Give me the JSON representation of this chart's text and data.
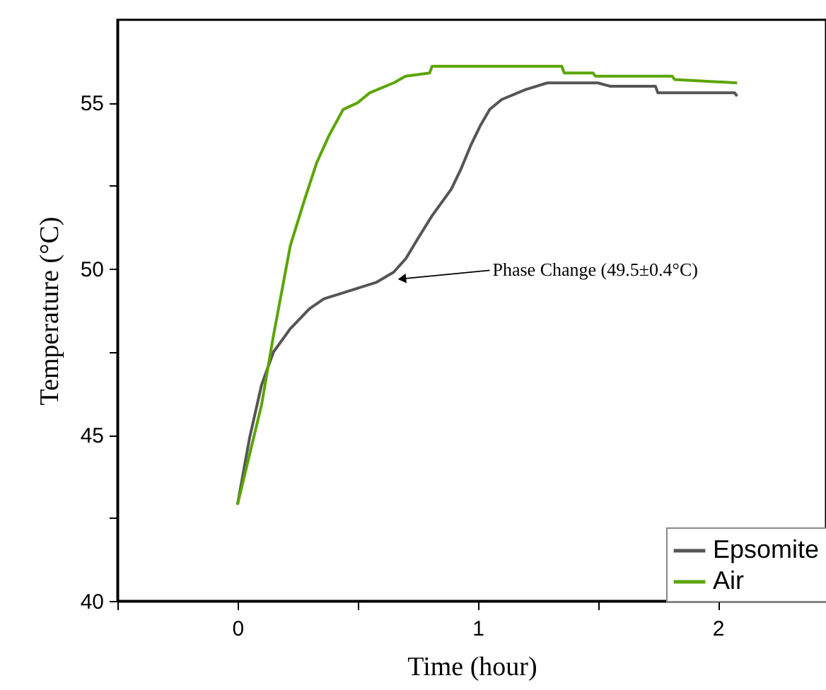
{
  "chart_data": {
    "type": "line",
    "xlabel": "Time (hour)",
    "ylabel": "Temperature (°C)",
    "xlim": [
      -0.5,
      2.45
    ],
    "xticks": [
      {
        "value": -0.5,
        "label": null
      },
      0,
      {
        "value": 0.5,
        "label": null
      },
      1,
      {
        "value": 1.5,
        "label": null
      },
      2
    ],
    "ylim": [
      40,
      57.5
    ],
    "yticks": [
      40,
      {
        "value": 42.5,
        "label": null
      },
      45,
      {
        "value": 47.5,
        "label": null
      },
      50,
      {
        "value": 52.5,
        "label": null
      },
      55
    ],
    "grid": false,
    "legend": "bottom right",
    "marker": "none",
    "line_style": "solid",
    "annotations": [
      {
        "text": "Phase Change (49.5±0.4°C)",
        "x": 0.685,
        "y": 49.7
      }
    ],
    "series": [
      {
        "name": "Epsomite",
        "color": "#555555",
        "x": [
          0,
          0.05,
          0.1,
          0.15,
          0.22,
          0.3,
          0.36,
          0.45,
          0.58,
          0.65,
          0.7,
          0.75,
          0.81,
          0.89,
          0.93,
          0.97,
          1.01,
          1.05,
          1.1,
          1.2,
          1.29,
          1.5,
          1.55,
          1.74,
          1.75,
          2.07,
          2.08
        ],
        "values": [
          42.9,
          44.9,
          46.5,
          47.5,
          48.2,
          48.8,
          49.1,
          49.3,
          49.6,
          49.9,
          50.3,
          50.9,
          51.6,
          52.4,
          53.0,
          53.7,
          54.3,
          54.8,
          55.1,
          55.4,
          55.6,
          55.6,
          55.5,
          55.5,
          55.3,
          55.3,
          55.2
        ]
      },
      {
        "name": "Air",
        "color": "#5aa500",
        "x": [
          0,
          0.05,
          0.1,
          0.15,
          0.22,
          0.28,
          0.33,
          0.38,
          0.44,
          0.5,
          0.55,
          0.65,
          0.7,
          0.8,
          0.81,
          1.35,
          1.36,
          1.48,
          1.49,
          1.81,
          1.82,
          2.08
        ],
        "values": [
          42.9,
          44.4,
          45.9,
          48.0,
          50.7,
          52.1,
          53.2,
          54.0,
          54.8,
          55.0,
          55.3,
          55.6,
          55.8,
          55.9,
          56.1,
          56.1,
          55.9,
          55.9,
          55.8,
          55.8,
          55.7,
          55.6
        ]
      }
    ]
  }
}
